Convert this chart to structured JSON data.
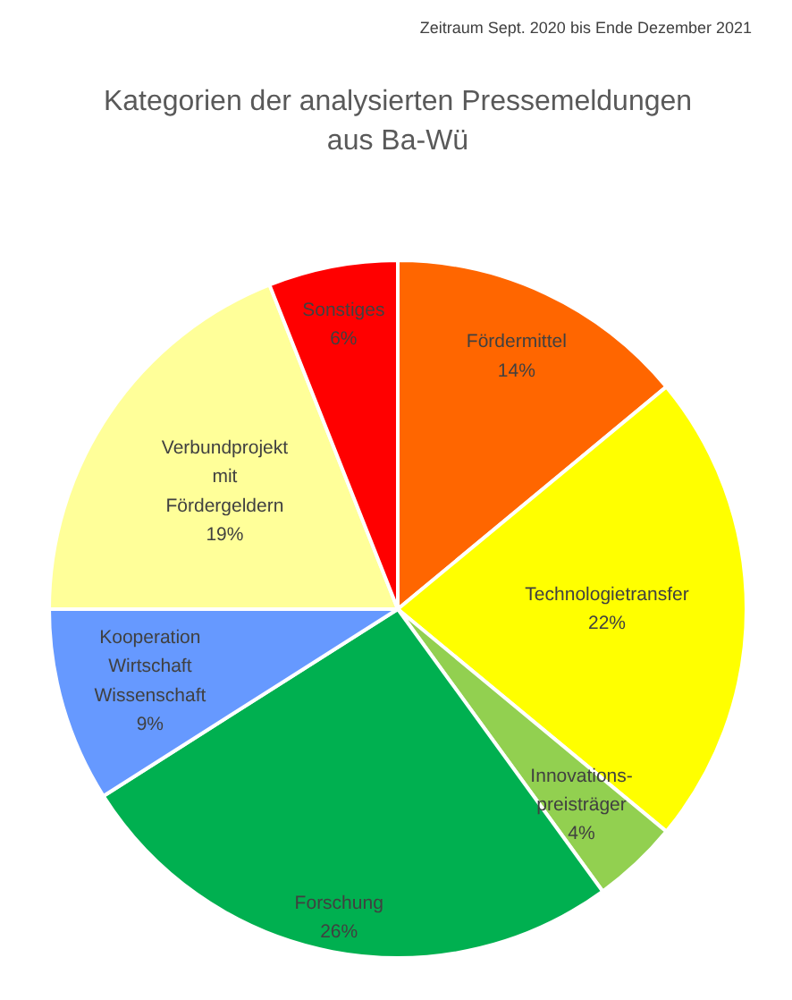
{
  "chart_data": {
    "type": "pie",
    "title": "Kategorien der analysierten Pressemeldungen\naus Ba-Wü",
    "annotations": [
      "Zeitraum Sept. 2020 bis Ende Dezember 2021"
    ],
    "categories": [
      "Fördermittel",
      "Technologietransfer",
      "Innovations-\npreisträger",
      "Forschung",
      "Kooperation\nWirtschaft\nWissenschaft",
      "Verbundprojekt\nmit\nFördergeldern",
      "Sonstiges"
    ],
    "values": [
      14,
      22,
      4,
      26,
      9,
      19,
      6
    ],
    "colors": [
      "#ff6600",
      "#ffff00",
      "#92d050",
      "#00b050",
      "#6699ff",
      "#ffff99",
      "#ff0000"
    ],
    "value_labels": [
      "14%",
      "22%",
      "4%",
      "26%",
      "9%",
      "19%",
      "6%"
    ]
  }
}
